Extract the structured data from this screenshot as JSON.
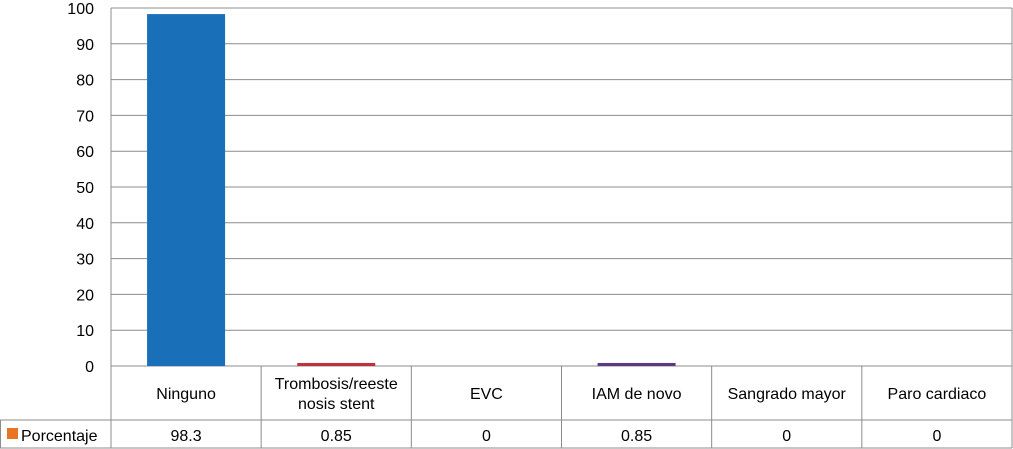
{
  "chart_data": {
    "type": "bar",
    "categories": [
      "Ninguno",
      "Trombosis/reeste nosis stent",
      "EVC",
      "IAM de novo",
      "Sangrado mayor",
      "Paro cardiaco"
    ],
    "category_lines": [
      [
        "Ninguno"
      ],
      [
        "Trombosis/reeste",
        "nosis stent"
      ],
      [
        "EVC"
      ],
      [
        "IAM de novo"
      ],
      [
        "Sangrado mayor"
      ],
      [
        "Paro cardiaco"
      ]
    ],
    "series": [
      {
        "name": "Porcentaje",
        "values": [
          98.3,
          0.85,
          0,
          0.85,
          0,
          0
        ],
        "value_labels": [
          "98.3",
          "0.85",
          "0",
          "0.85",
          "0",
          "0"
        ]
      }
    ],
    "bar_colors": [
      "#1a6fb9",
      "#c0323a",
      "#7a9a3a",
      "#5b3a83",
      "#2e9ab0",
      "#e87424"
    ],
    "legend_color": "#e87424",
    "ylim": [
      0,
      100
    ],
    "yticks": [
      0,
      10,
      20,
      30,
      40,
      50,
      60,
      70,
      80,
      90,
      100
    ],
    "grid": true,
    "legend": "data-table",
    "xlabel": "",
    "ylabel": ""
  }
}
